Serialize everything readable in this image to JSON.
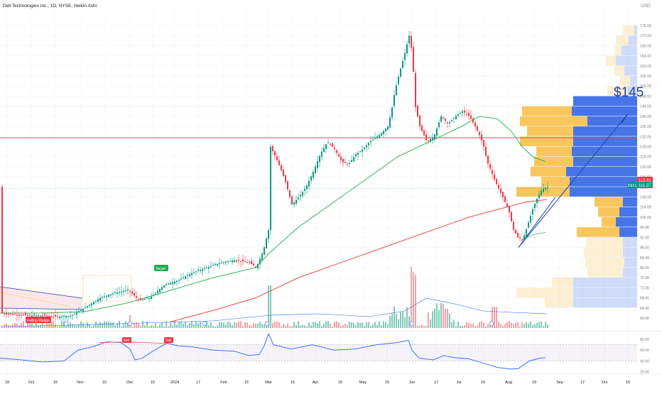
{
  "header": {
    "title": "Dell Technologies Inc., 1D, NYSE, Heikin Ashi",
    "currency": "USD"
  },
  "chart_data": {
    "type": "candlestick",
    "y_ticks": [
      "176.00",
      "172.00",
      "168.00",
      "164.00",
      "160.00",
      "156.00",
      "152.00",
      "148.00",
      "144.00",
      "140.00",
      "136.00",
      "132.00",
      "128.00",
      "124.00",
      "120.00",
      "116.00",
      "112.00",
      "108.00",
      "104.00",
      "100.00",
      "96.00",
      "92.00",
      "88.00",
      "84.00",
      "80.00",
      "76.00",
      "72.00",
      "68.00",
      "64.00",
      "60.00"
    ],
    "ylim": [
      58,
      178
    ],
    "x_ticks": [
      "18",
      "Oct",
      "16",
      "Nov",
      "15",
      "Dec",
      "15",
      "2024",
      "17",
      "Feb",
      "15",
      "Mar",
      "15",
      "Apr",
      "15",
      "May",
      "15",
      "Jun",
      "17",
      "Jul",
      "16",
      "Aug",
      "19",
      "Sep",
      "17",
      "Oct",
      "15"
    ],
    "price_labels": {
      "last_close": "112.81",
      "current": "111.27",
      "tag": "DELL"
    },
    "horizontal_line": {
      "value": 131.5,
      "color": "#f23645"
    },
    "annotations": {
      "target_text": "$145",
      "target_badge": "Target",
      "pattern_badge": "Falling Wedge",
      "sell_badge_1": "Sell",
      "sell_badge_2": "Sell"
    },
    "colors": {
      "up": "#089981",
      "down": "#f23645",
      "ma_short": "#22ab4d",
      "ma_long": "#e53935",
      "target_line": "#1e3fae",
      "volume_up": "#7fcbb8",
      "volume_down": "#f5a2a6",
      "vp_up": "#3d6ee6",
      "vp_down": "#f7c04a"
    },
    "rsi": {
      "ticks": [
        "80.00",
        "60.00",
        "40.00",
        "20.00"
      ],
      "ylim": [
        17,
        93
      ],
      "band": [
        40,
        70
      ]
    }
  }
}
